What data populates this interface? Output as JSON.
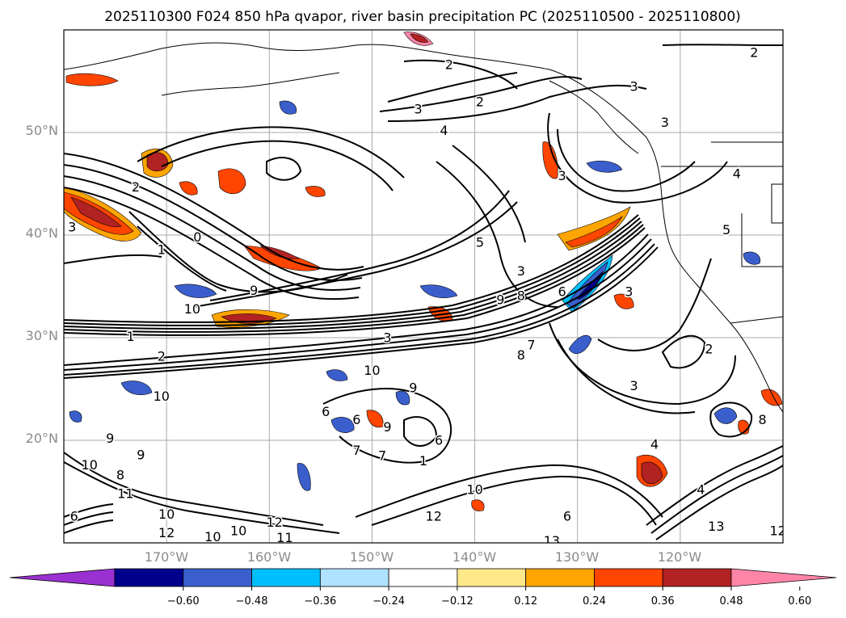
{
  "chart_data": {
    "type": "contour_map",
    "title": "2025110300 F024 850 hPa qvapor, river basin precipitation PC (2025110500 - 2025110800)",
    "lon_range": [
      -180,
      -110
    ],
    "lat_range": [
      10,
      60
    ],
    "lat_ticks": [
      {
        "value": 20,
        "label": "20°N"
      },
      {
        "value": 30,
        "label": "30°N"
      },
      {
        "value": 40,
        "label": "40°N"
      },
      {
        "value": 50,
        "label": "50°N"
      }
    ],
    "lon_ticks": [
      {
        "value": -170,
        "label": "170°W"
      },
      {
        "value": -160,
        "label": "160°W"
      },
      {
        "value": -150,
        "label": "150°W"
      },
      {
        "value": -140,
        "label": "140°W"
      },
      {
        "value": -130,
        "label": "130°W"
      },
      {
        "value": -120,
        "label": "120°W"
      }
    ],
    "colorbar": {
      "ticks": [
        "−0.60",
        "−0.48",
        "−0.36",
        "−0.24",
        "−0.12",
        "0.12",
        "0.24",
        "0.36",
        "0.48",
        "0.60"
      ],
      "bins": [
        {
          "range": "< -0.60",
          "color": "#9b30d0"
        },
        {
          "range": "-0.60 to -0.48",
          "color": "#00008b"
        },
        {
          "range": "-0.48 to -0.36",
          "color": "#3a5fcd"
        },
        {
          "range": "-0.36 to -0.24",
          "color": "#00bfff"
        },
        {
          "range": "-0.24 to -0.12",
          "color": "#afe2ff"
        },
        {
          "range": "-0.12 to 0.12",
          "color": "#ffffff"
        },
        {
          "range": "0.12 to 0.24",
          "color": "#ffe88a"
        },
        {
          "range": "0.24 to 0.36",
          "color": "#ffa500"
        },
        {
          "range": "0.36 to 0.48",
          "color": "#ff4500"
        },
        {
          "range": "0.48 to 0.60",
          "color": "#b22222"
        },
        {
          "range": "> 0.60",
          "color": "#ff85a8"
        }
      ]
    },
    "contour_labels": [
      {
        "lon": -179.2,
        "lat": 40.8,
        "text": "3"
      },
      {
        "lon": -173.0,
        "lat": 44.7,
        "text": "2"
      },
      {
        "lon": -170.5,
        "lat": 38.6,
        "text": "1"
      },
      {
        "lon": -167.0,
        "lat": 39.8,
        "text": "0"
      },
      {
        "lon": -161.5,
        "lat": 34.6,
        "text": "9"
      },
      {
        "lon": -167.5,
        "lat": 32.8,
        "text": "10"
      },
      {
        "lon": -173.5,
        "lat": 30.1,
        "text": "1"
      },
      {
        "lon": -170.5,
        "lat": 28.2,
        "text": "2"
      },
      {
        "lon": -170.5,
        "lat": 24.3,
        "text": "10"
      },
      {
        "lon": -175.5,
        "lat": 20.2,
        "text": "9"
      },
      {
        "lon": -177.5,
        "lat": 17.6,
        "text": "10"
      },
      {
        "lon": -174.5,
        "lat": 16.6,
        "text": "8"
      },
      {
        "lon": -172.5,
        "lat": 18.6,
        "text": "9"
      },
      {
        "lon": -174.0,
        "lat": 14.8,
        "text": "11"
      },
      {
        "lon": -179.0,
        "lat": 12.6,
        "text": "6"
      },
      {
        "lon": -170.0,
        "lat": 12.8,
        "text": "10"
      },
      {
        "lon": -170.0,
        "lat": 11.0,
        "text": "12"
      },
      {
        "lon": -165.5,
        "lat": 10.6,
        "text": "10"
      },
      {
        "lon": -163.0,
        "lat": 11.2,
        "text": "10"
      },
      {
        "lon": -159.5,
        "lat": 12.0,
        "text": "12"
      },
      {
        "lon": -158.5,
        "lat": 10.5,
        "text": "11"
      },
      {
        "lon": -142.5,
        "lat": 56.6,
        "text": "2"
      },
      {
        "lon": -145.5,
        "lat": 52.3,
        "text": "3"
      },
      {
        "lon": -139.5,
        "lat": 53.0,
        "text": "2"
      },
      {
        "lon": -143.0,
        "lat": 50.2,
        "text": "4"
      },
      {
        "lon": -112.8,
        "lat": 57.8,
        "text": "2"
      },
      {
        "lon": -124.5,
        "lat": 54.5,
        "text": "3"
      },
      {
        "lon": -121.5,
        "lat": 51.0,
        "text": "3"
      },
      {
        "lon": -131.5,
        "lat": 45.8,
        "text": "3"
      },
      {
        "lon": -114.5,
        "lat": 46.0,
        "text": "4"
      },
      {
        "lon": -115.5,
        "lat": 40.5,
        "text": "5"
      },
      {
        "lon": -139.5,
        "lat": 39.3,
        "text": "5"
      },
      {
        "lon": -135.5,
        "lat": 36.5,
        "text": "3"
      },
      {
        "lon": -137.5,
        "lat": 33.7,
        "text": "9"
      },
      {
        "lon": -135.5,
        "lat": 34.1,
        "text": "8"
      },
      {
        "lon": -131.5,
        "lat": 34.5,
        "text": "6"
      },
      {
        "lon": -125.0,
        "lat": 34.5,
        "text": "3"
      },
      {
        "lon": -134.5,
        "lat": 29.3,
        "text": "7"
      },
      {
        "lon": -135.5,
        "lat": 28.3,
        "text": "8"
      },
      {
        "lon": -117.2,
        "lat": 28.9,
        "text": "2"
      },
      {
        "lon": -124.5,
        "lat": 25.3,
        "text": "3"
      },
      {
        "lon": -148.5,
        "lat": 30.0,
        "text": "3"
      },
      {
        "lon": -150.0,
        "lat": 26.8,
        "text": "10"
      },
      {
        "lon": -146.0,
        "lat": 25.1,
        "text": "9"
      },
      {
        "lon": -154.5,
        "lat": 22.8,
        "text": "6"
      },
      {
        "lon": -151.5,
        "lat": 22.0,
        "text": "6"
      },
      {
        "lon": -148.5,
        "lat": 21.3,
        "text": "9"
      },
      {
        "lon": -151.5,
        "lat": 19.0,
        "text": "7"
      },
      {
        "lon": -149.0,
        "lat": 18.5,
        "text": "7"
      },
      {
        "lon": -145.0,
        "lat": 18.0,
        "text": "1"
      },
      {
        "lon": -143.5,
        "lat": 20.0,
        "text": "6"
      },
      {
        "lon": -140.0,
        "lat": 15.2,
        "text": "10"
      },
      {
        "lon": -144.0,
        "lat": 12.6,
        "text": "12"
      },
      {
        "lon": -131.0,
        "lat": 12.6,
        "text": "6"
      },
      {
        "lon": -132.5,
        "lat": 10.2,
        "text": "13"
      },
      {
        "lon": -118.0,
        "lat": 15.2,
        "text": "4"
      },
      {
        "lon": -122.5,
        "lat": 19.6,
        "text": "4"
      },
      {
        "lon": -116.5,
        "lat": 11.6,
        "text": "13"
      },
      {
        "lon": -110.5,
        "lat": 11.2,
        "text": "12"
      },
      {
        "lon": -112.0,
        "lat": 22.0,
        "text": "8"
      }
    ]
  },
  "colors": {
    "contour_line": "#000000",
    "grid": "#a9a9a9",
    "coastline": "#000000"
  }
}
